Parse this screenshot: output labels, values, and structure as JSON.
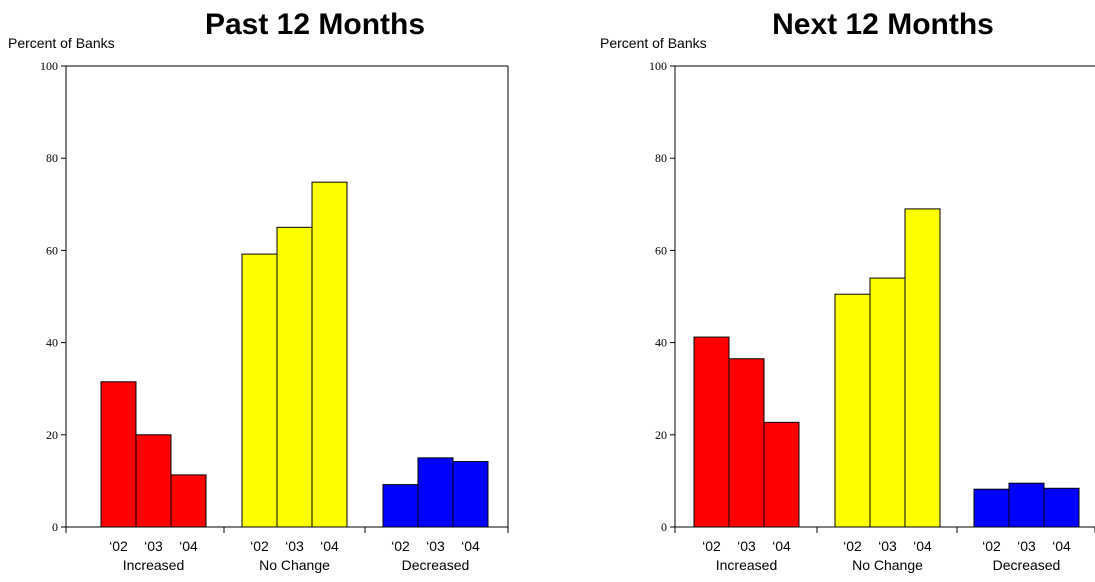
{
  "chart_data": [
    {
      "type": "bar",
      "title": "Past 12 Months",
      "ylabel": "Percent of Banks",
      "ylim": [
        0,
        100
      ],
      "yticks": [
        0,
        20,
        40,
        60,
        80,
        100
      ],
      "grid": false,
      "groups": [
        {
          "label": "Increased",
          "color": "#ff0000",
          "categories": [
            "‘02",
            "‘03",
            "‘04"
          ],
          "values": [
            31.5,
            20,
            11.3
          ]
        },
        {
          "label": "No Change",
          "color": "#ffff00",
          "categories": [
            "‘02",
            "‘03",
            "‘04"
          ],
          "values": [
            59.2,
            65,
            74.8
          ]
        },
        {
          "label": "Decreased",
          "color": "#0000ff",
          "categories": [
            "‘02",
            "‘03",
            "‘04"
          ],
          "values": [
            9.2,
            15,
            14.2
          ]
        }
      ]
    },
    {
      "type": "bar",
      "title": "Next 12 Months",
      "ylabel": "Percent of Banks",
      "ylim": [
        0,
        100
      ],
      "yticks": [
        0,
        20,
        40,
        60,
        80,
        100
      ],
      "grid": false,
      "groups": [
        {
          "label": "Increased",
          "color": "#ff0000",
          "categories": [
            "‘02",
            "‘03",
            "‘04"
          ],
          "values": [
            41.2,
            36.5,
            22.7
          ]
        },
        {
          "label": "No Change",
          "color": "#ffff00",
          "categories": [
            "‘02",
            "‘03",
            "‘04"
          ],
          "values": [
            50.5,
            54,
            69
          ]
        },
        {
          "label": "Decreased",
          "color": "#0000ff",
          "categories": [
            "‘02",
            "‘03",
            "‘04"
          ],
          "values": [
            8.2,
            9.5,
            8.4
          ]
        }
      ]
    }
  ]
}
